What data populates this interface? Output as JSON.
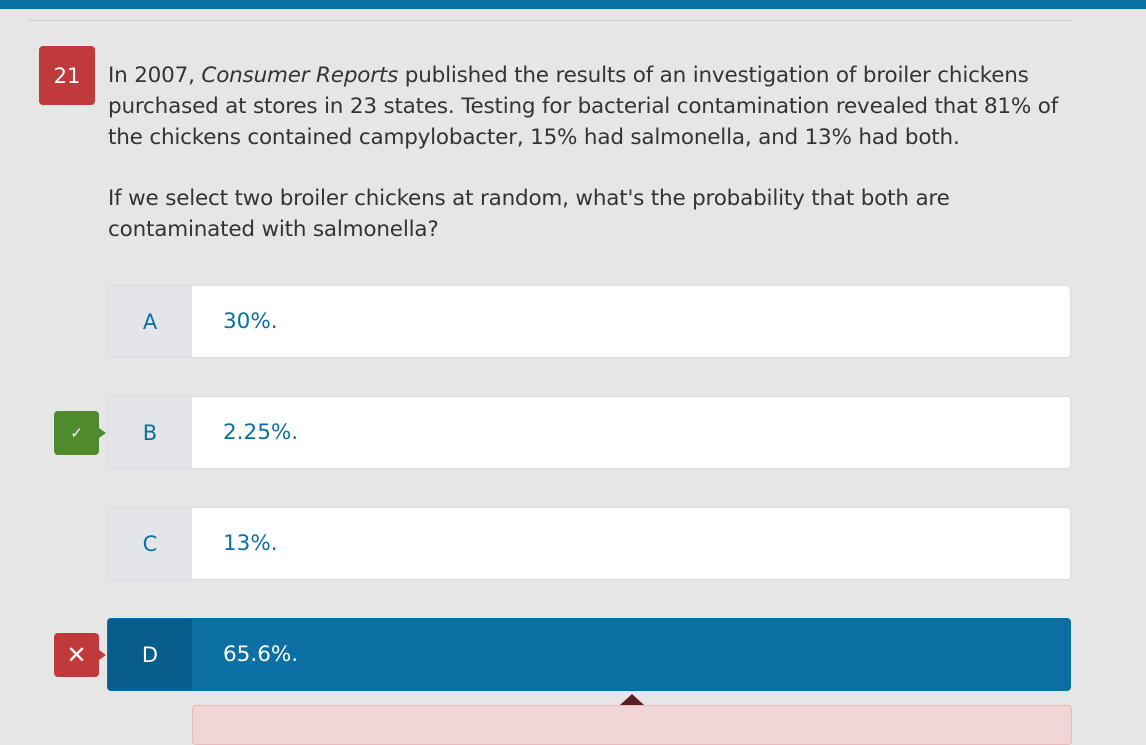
{
  "question": {
    "number": "21",
    "intro_before": "In 2007, ",
    "source": "Consumer Reports",
    "intro_after": " published the results of an investigation of broiler chickens purchased at stores in 23 states. Testing for bacterial contamination revealed that 81% of the chickens contained campylobacter, 15% had salmonella, and 13% had both.",
    "prompt": "If we select two broiler chickens at random, what's the probability that both are contaminated with salmonella?"
  },
  "choices": [
    {
      "letter": "A",
      "text": "30%."
    },
    {
      "letter": "B",
      "text": "2.25%."
    },
    {
      "letter": "C",
      "text": "13%."
    },
    {
      "letter": "D",
      "text": "65.6%."
    }
  ],
  "markers": {
    "correct_symbol": "✓",
    "wrong_symbol": "✕"
  },
  "colors": {
    "accent": "#0b6fa4",
    "correct": "#4f8a2f",
    "wrong": "#c0393b"
  }
}
